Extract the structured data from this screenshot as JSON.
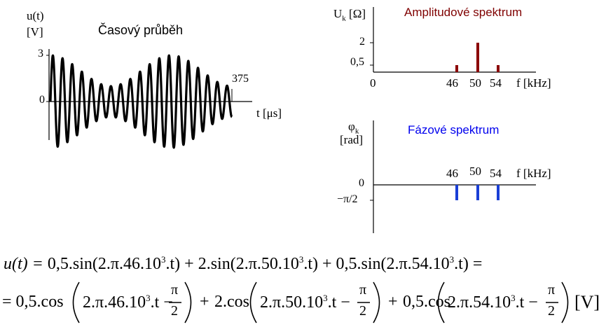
{
  "time_plot": {
    "ylabel_top": "u(t)",
    "ylabel_unit": "[V]",
    "title": "Časový průběh",
    "ytick_top": "3",
    "ytick_zero": "0",
    "end_label": "375",
    "xlabel": "t [μs]"
  },
  "amplitude_plot": {
    "ylabel": "Uk [Ω]",
    "ylabel_main": "U",
    "ylabel_sub": "k",
    "ylabel_unit": "[Ω]",
    "title": "Amplitudové spektrum",
    "title_color": "#7f0000",
    "ytick_2": "2",
    "ytick_05": "0,5",
    "xtick_0": "0",
    "xtick_46": "46",
    "xtick_50": "50",
    "xtick_54": "54",
    "xlabel": "f [kHz]",
    "bar_color": "#8b0000"
  },
  "phase_plot": {
    "ylabel_main": "φ",
    "ylabel_sub": "k",
    "ylabel_unit": "[rad]",
    "title": "Fázové spektrum",
    "title_color": "#0000ee",
    "ytick_zero": "0",
    "ytick_neg": "−π/2",
    "xtick_46": "46",
    "xtick_50": "50",
    "xtick_54": "54",
    "xlabel": "f [kHz]",
    "bar_color": "#1a3fd6"
  },
  "chart_data": [
    {
      "type": "line",
      "title": "Časový průběh",
      "xlabel": "t [μs]",
      "ylabel": "u(t) [V]",
      "xlim": [
        0,
        375
      ],
      "yticks": [
        0,
        3
      ],
      "series": [
        {
          "values_formula": "0.5 sin(2π·46e3 t) + 2 sin(2π·50e3 t) + 0.5 sin(2π·54e3 t)"
        }
      ]
    },
    {
      "type": "bar",
      "title": "Amplitudové spektrum",
      "xlabel": "f [kHz]",
      "ylabel": "Uk [Ω]",
      "categories": [
        "46",
        "50",
        "54"
      ],
      "values": [
        0.5,
        2,
        0.5
      ],
      "yticks": [
        0.5,
        2
      ]
    },
    {
      "type": "bar",
      "title": "Fázové spektrum",
      "xlabel": "f [kHz]",
      "ylabel": "φk [rad]",
      "categories": [
        "46",
        "50",
        "54"
      ],
      "values": [
        -1.5708,
        -1.5708,
        -1.5708
      ],
      "yticks": [
        "0",
        "−π/2"
      ]
    }
  ],
  "equation": {
    "line1": {
      "lhs": "u(t) = ",
      "t1": "0,5.sin(2.π.46.10",
      "t2": "2.sin(2.π.50.10",
      "t3": "0,5.sin(2.π.54.10",
      "exp": "3",
      "tail": ".t)",
      "plus": " + ",
      "end": " ="
    },
    "line2": {
      "eq": "= 0,5.cos",
      "c1": "2.π.46.10",
      "c2": "2.cos",
      "c3": "2.π.50.10",
      "c4": "0,5.cos",
      "c5": "2.π.54.10",
      "exp": "3",
      "minus": ".t −",
      "pi": "π",
      "two": "2",
      "plus": "+",
      "unit": "[V]"
    }
  }
}
